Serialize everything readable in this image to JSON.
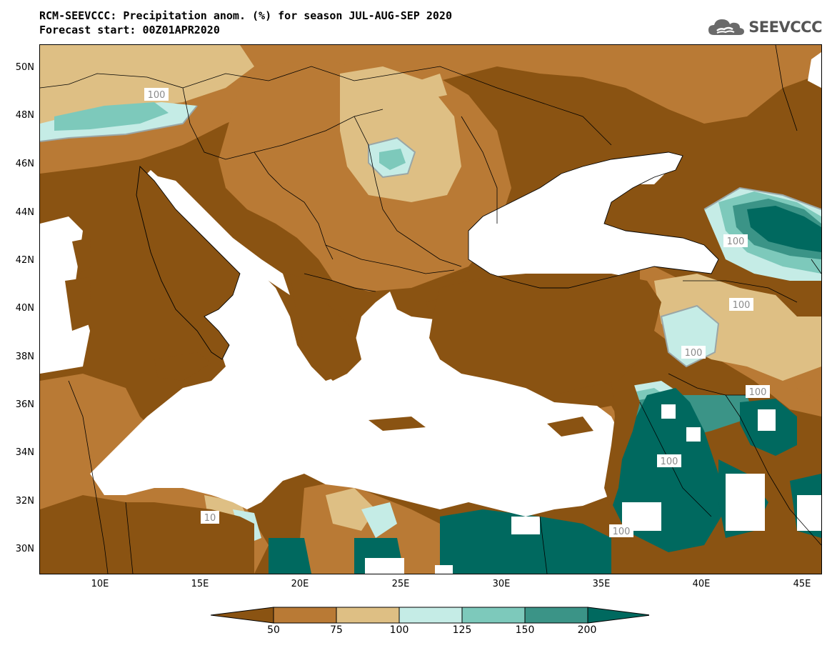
{
  "header": {
    "title_line1": "RCM-SEEVCCC: Precipitation anom. (%) for season JUL-AUG-SEP 2020",
    "title_line2": "Forecast start: 00Z01APR2020"
  },
  "logo": {
    "text": "SEEVCCC",
    "icon": "cloud-logo-icon"
  },
  "map": {
    "lat_labels": [
      "50N",
      "48N",
      "46N",
      "44N",
      "42N",
      "40N",
      "38N",
      "36N",
      "34N",
      "32N",
      "30N"
    ],
    "lon_labels": [
      "10E",
      "15E",
      "20E",
      "25E",
      "30E",
      "35E",
      "40E",
      "45E"
    ],
    "contour_label": "100",
    "partial_contour_label": "10"
  },
  "colorbar": {
    "labels": [
      "50",
      "75",
      "100",
      "125",
      "150",
      "200"
    ],
    "colors": [
      "#8a5312",
      "#b97a35",
      "#debf84",
      "#c5ece6",
      "#7dc9bb",
      "#3b9487",
      "#00695f"
    ]
  },
  "chart_data": {
    "type": "heatmap",
    "title": "RCM-SEEVCCC: Precipitation anom. (%) for season JUL-AUG-SEP 2020",
    "subtitle": "Forecast start: 00Z01APR2020",
    "xlabel": "",
    "ylabel": "",
    "xlim": [
      7,
      46
    ],
    "ylim": [
      29,
      51
    ],
    "color_levels": [
      50,
      75,
      100,
      125,
      150,
      200
    ],
    "contour_labels": [
      {
        "lon": 12.6,
        "lat": 48.9,
        "value": 100
      },
      {
        "lon": 42.5,
        "lat": 43.0,
        "value": 100
      },
      {
        "lon": 43.0,
        "lat": 40.2,
        "value": 100
      },
      {
        "lon": 39.7,
        "lat": 38.3,
        "value": 100
      },
      {
        "lon": 43.7,
        "lat": 36.6,
        "value": 100
      },
      {
        "lon": 38.9,
        "lat": 33.6,
        "value": 100
      },
      {
        "lon": 36.1,
        "lat": 30.8,
        "value": 100
      },
      {
        "lon": 15.6,
        "lat": 31.4,
        "value": 10
      }
    ]
  }
}
